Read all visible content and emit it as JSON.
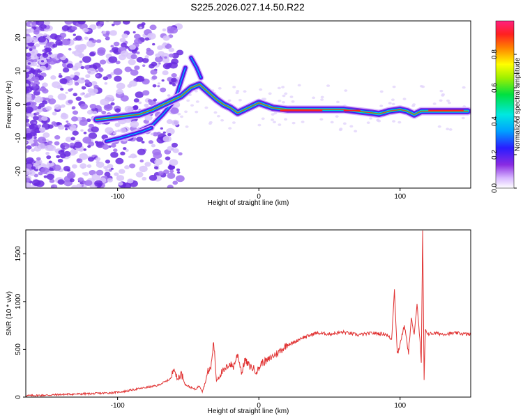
{
  "title": "S225.2026.027.14.50.R22",
  "chart_data": [
    {
      "type": "heatmap",
      "title": "S225.2026.027.14.50.R22",
      "xlabel": "Height of straight line (km)",
      "ylabel": "Frequency (Hz)",
      "xlim": [
        -165,
        150
      ],
      "ylim": [
        -25,
        25
      ],
      "xticks": [
        -100,
        0,
        100
      ],
      "xtick_labels": [
        "-100",
        "0",
        "100"
      ],
      "yticks": [
        -20,
        -10,
        0,
        10,
        20
      ],
      "ytick_labels": [
        "-20",
        "-10",
        "0",
        "10",
        "20"
      ],
      "colorbar": {
        "label": "Normalized spectral amplitude",
        "range": [
          0,
          1
        ],
        "ticks": [
          0.0,
          0.2,
          0.4,
          0.6,
          0.8
        ],
        "tick_labels": [
          "0.0",
          "0.2",
          "0.4",
          "0.6",
          "0.8"
        ]
      },
      "ridge": {
        "x": [
          -115,
          -105,
          -95,
          -85,
          -75,
          -65,
          -55,
          -48,
          -42,
          -38,
          -34,
          -30,
          -25,
          -20,
          -15,
          -10,
          -5,
          0,
          10,
          20,
          40,
          60,
          70,
          80,
          85,
          88,
          92,
          100,
          105,
          110,
          115,
          120,
          130,
          140,
          148
        ],
        "y": [
          -4.5,
          -4,
          -3.5,
          -3,
          -1.5,
          0.5,
          2.5,
          5,
          6,
          4.5,
          3,
          1.5,
          0,
          -1,
          -2.5,
          -1.5,
          -0.5,
          0.5,
          -1,
          -1.5,
          -1.5,
          -1.5,
          -2,
          -2.5,
          -2.8,
          -2.5,
          -2,
          -1.5,
          -2,
          -3,
          -2,
          -2,
          -2,
          -2,
          -2
        ]
      },
      "branches": [
        {
          "x": [
            -95,
            -85,
            -75,
            -68,
            -62,
            -58,
            -55,
            -52
          ],
          "y": [
            -10,
            -8,
            -6,
            -3,
            0,
            3,
            7,
            11
          ]
        },
        {
          "x": [
            -108,
            -98,
            -90,
            -82,
            -76
          ],
          "y": [
            -11,
            -10,
            -9,
            -8,
            -7
          ]
        },
        {
          "x": [
            -48,
            -44,
            -41
          ],
          "y": [
            14,
            11,
            8
          ]
        }
      ]
    },
    {
      "type": "line",
      "xlabel": "Height of straight line (km)",
      "ylabel": "SNR (10 * v/v)",
      "xlim": [
        -165,
        150
      ],
      "ylim": [
        0,
        1750
      ],
      "xticks": [
        -100,
        0,
        100
      ],
      "xtick_labels": [
        "-100",
        "0",
        "100"
      ],
      "yticks": [
        0,
        500,
        1000,
        1500
      ],
      "ytick_labels": [
        "0",
        "500",
        "1000",
        "1500"
      ],
      "series": [
        {
          "name": "SNR",
          "color": "#e03030",
          "x": [
            -165,
            -150,
            -135,
            -120,
            -105,
            -95,
            -88,
            -80,
            -72,
            -65,
            -62,
            -60,
            -58,
            -55,
            -52,
            -48,
            -45,
            -42,
            -40,
            -38,
            -36,
            -34,
            -32,
            -30,
            -27,
            -24,
            -21,
            -18,
            -15,
            -12,
            -10,
            -7,
            -4,
            -1,
            2,
            6,
            10,
            15,
            20,
            25,
            30,
            35,
            40,
            50,
            60,
            70,
            80,
            90,
            94,
            96,
            98,
            100,
            103,
            106,
            108,
            110,
            112,
            114,
            115,
            116,
            117,
            118,
            120,
            125,
            130,
            140,
            150
          ],
          "y": [
            15,
            20,
            30,
            35,
            45,
            60,
            80,
            100,
            120,
            170,
            200,
            330,
            180,
            250,
            130,
            100,
            80,
            120,
            60,
            150,
            270,
            300,
            580,
            170,
            250,
            280,
            350,
            320,
            450,
            250,
            390,
            330,
            300,
            270,
            360,
            380,
            430,
            480,
            550,
            570,
            620,
            640,
            670,
            660,
            680,
            650,
            670,
            660,
            600,
            1130,
            450,
            560,
            750,
            480,
            820,
            640,
            990,
            600,
            340,
            1750,
            180,
            700,
            660,
            670,
            660,
            670,
            655
          ]
        }
      ]
    }
  ]
}
